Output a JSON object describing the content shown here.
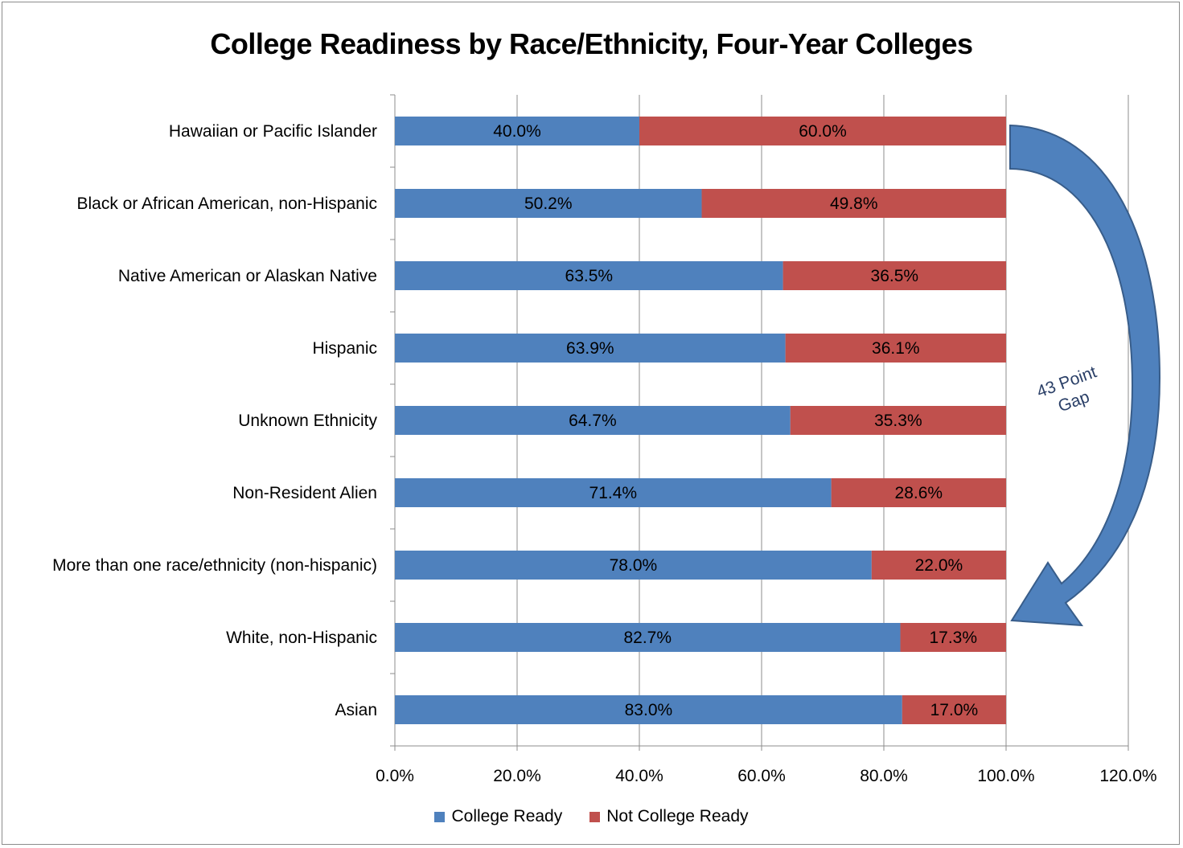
{
  "chart_data": {
    "type": "bar",
    "orientation": "horizontal",
    "stacked": true,
    "title": "College Readiness by Race/Ethnicity, Four-Year Colleges",
    "categories": [
      "Hawaiian or Pacific Islander",
      "Black or African American, non-Hispanic",
      "Native American or Alaskan Native",
      "Hispanic",
      "Unknown Ethnicity",
      "Non-Resident Alien",
      "More than one race/ethnicity (non-hispanic)",
      "White, non-Hispanic",
      "Asian"
    ],
    "series": [
      {
        "name": "College Ready",
        "color": "#4f81bd",
        "values": [
          40.0,
          50.2,
          63.5,
          63.9,
          64.7,
          71.4,
          78.0,
          82.7,
          83.0
        ],
        "labels": [
          "40.0%",
          "50.2%",
          "63.5%",
          "63.9%",
          "64.7%",
          "71.4%",
          "78.0%",
          "82.7%",
          "83.0%"
        ]
      },
      {
        "name": "Not College Ready",
        "color": "#c0504d",
        "values": [
          60.0,
          49.8,
          36.5,
          36.1,
          35.3,
          28.6,
          22.0,
          17.3,
          17.0
        ],
        "labels": [
          "60.0%",
          "49.8%",
          "36.5%",
          "36.1%",
          "35.3%",
          "28.6%",
          "22.0%",
          "17.3%",
          "17.0%"
        ]
      }
    ],
    "xlim": [
      0,
      120
    ],
    "xticks": [
      "0.0%",
      "20.0%",
      "40.0%",
      "60.0%",
      "80.0%",
      "100.0%",
      "120.0%"
    ],
    "grid": true,
    "legend_position": "bottom",
    "annotation": {
      "text_line1": "43 Point",
      "text_line2": "Gap",
      "arrow_color": "#4f81bd"
    }
  }
}
